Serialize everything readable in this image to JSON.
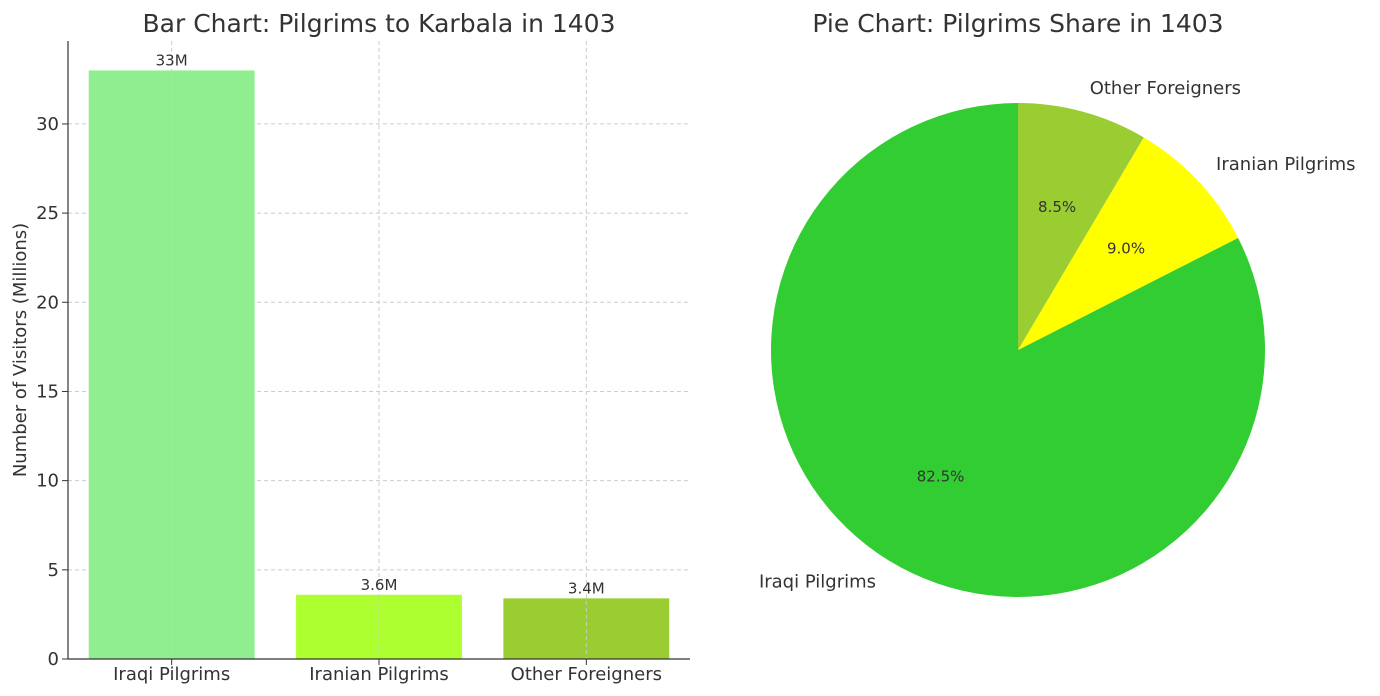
{
  "chart_data": [
    {
      "type": "bar",
      "title": "Bar Chart: Pilgrims to Karbala in 1403",
      "xlabel": "",
      "ylabel": "Number of Visitors (Millions)",
      "categories": [
        "Iraqi Pilgrims",
        "Iranian Pilgrims",
        "Other Foreigners"
      ],
      "values": [
        33,
        3.6,
        3.4
      ],
      "data_labels": [
        "33M",
        "3.6M",
        "3.4M"
      ],
      "colors": [
        "#90ee90",
        "#adff2f",
        "#9acd32"
      ],
      "ylim": [
        0,
        34.65
      ],
      "yticks": [
        0,
        5,
        10,
        15,
        20,
        25,
        30
      ],
      "grid": true
    },
    {
      "type": "pie",
      "title": "Pie Chart: Pilgrims Share in 1403",
      "labels": [
        "Iraqi Pilgrims",
        "Iranian Pilgrims",
        "Other Foreigners"
      ],
      "values": [
        82.5,
        9.0,
        8.5
      ],
      "percent_labels": [
        "82.5%",
        "9.0%",
        "8.5%"
      ],
      "colors": [
        "#32cd32",
        "#ffff00",
        "#9acd32"
      ],
      "start_angle_deg": 90,
      "direction": "counterclockwise"
    }
  ]
}
